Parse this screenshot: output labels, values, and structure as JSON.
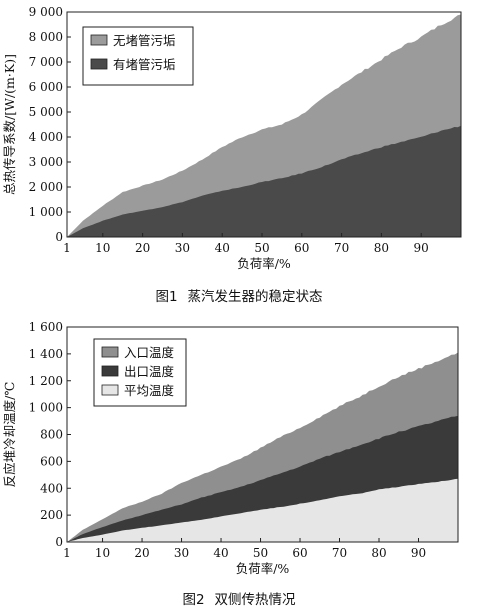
{
  "captions": [
    {
      "number": "图1",
      "title": "蒸汽发生器的稳定状态"
    },
    {
      "number": "图2",
      "title": "双侧传热情况"
    }
  ],
  "chart_data": [
    {
      "type": "area",
      "ylabel": "总热传导系数/[W/(m·K)]",
      "xlabel": "负荷率/%",
      "xlim": [
        1,
        100
      ],
      "ylim": [
        0,
        9000
      ],
      "xticks": [
        1,
        10,
        20,
        30,
        40,
        50,
        60,
        70,
        80,
        90
      ],
      "xtick_labels": [
        "1",
        "10",
        "20",
        "30",
        "40",
        "50",
        "60",
        "70",
        "80",
        "90"
      ],
      "yticks": [
        0,
        1000,
        2000,
        3000,
        4000,
        5000,
        6000,
        7000,
        8000,
        9000
      ],
      "ytick_labels": [
        "0",
        "1 000",
        "2 000",
        "3 000",
        "4 000",
        "5 000",
        "6 000",
        "7 000",
        "8 000",
        "9 000"
      ],
      "grid": false,
      "legend_position": "top-left",
      "x": [
        1,
        5,
        10,
        15,
        20,
        25,
        30,
        35,
        40,
        45,
        50,
        55,
        60,
        65,
        70,
        75,
        80,
        85,
        90,
        95,
        100
      ],
      "series": [
        {
          "name": "无堵管污垢",
          "color": "#9b9b9b",
          "values": [
            0,
            650,
            1250,
            1800,
            2050,
            2300,
            2650,
            3100,
            3600,
            4000,
            4300,
            4500,
            4900,
            5500,
            6100,
            6600,
            7100,
            7600,
            8000,
            8500,
            8900
          ]
        },
        {
          "name": "有堵管污垢",
          "color": "#4a4a4a",
          "values": [
            0,
            350,
            650,
            900,
            1050,
            1200,
            1400,
            1650,
            1850,
            2000,
            2200,
            2350,
            2550,
            2800,
            3100,
            3350,
            3600,
            3800,
            4000,
            4250,
            4450
          ]
        }
      ]
    },
    {
      "type": "area",
      "ylabel": "反应堆冷却温度/℃",
      "xlabel": "负荷率/%",
      "xlim": [
        1,
        100
      ],
      "ylim": [
        0,
        1600
      ],
      "xticks": [
        1,
        10,
        20,
        30,
        40,
        50,
        60,
        70,
        80,
        90
      ],
      "xtick_labels": [
        "1",
        "10",
        "20",
        "30",
        "40",
        "50",
        "60",
        "70",
        "80",
        "90"
      ],
      "yticks": [
        0,
        200,
        400,
        600,
        800,
        1000,
        1200,
        1400,
        1600
      ],
      "ytick_labels": [
        "0",
        "200",
        "400",
        "600",
        "800",
        "1 000",
        "1 200",
        "1 400",
        "1 600"
      ],
      "grid": false,
      "legend_position": "top-left",
      "x": [
        1,
        5,
        10,
        15,
        20,
        25,
        30,
        35,
        40,
        45,
        50,
        55,
        60,
        65,
        70,
        75,
        80,
        85,
        90,
        95,
        100
      ],
      "series": [
        {
          "name": "入口温度",
          "color": "#8f8f8f",
          "values": [
            0,
            90,
            170,
            250,
            300,
            360,
            440,
            500,
            560,
            620,
            700,
            780,
            850,
            930,
            1010,
            1080,
            1160,
            1230,
            1290,
            1350,
            1410
          ]
        },
        {
          "name": "出口温度",
          "color": "#3a3a3a",
          "values": [
            0,
            60,
            110,
            160,
            200,
            240,
            280,
            330,
            370,
            410,
            460,
            510,
            560,
            620,
            670,
            720,
            770,
            820,
            860,
            900,
            940
          ]
        },
        {
          "name": "平均温度",
          "color": "#e6e6e6",
          "values": [
            0,
            30,
            55,
            85,
            105,
            125,
            145,
            165,
            190,
            215,
            240,
            260,
            285,
            310,
            340,
            360,
            390,
            410,
            430,
            450,
            470
          ]
        }
      ]
    }
  ]
}
